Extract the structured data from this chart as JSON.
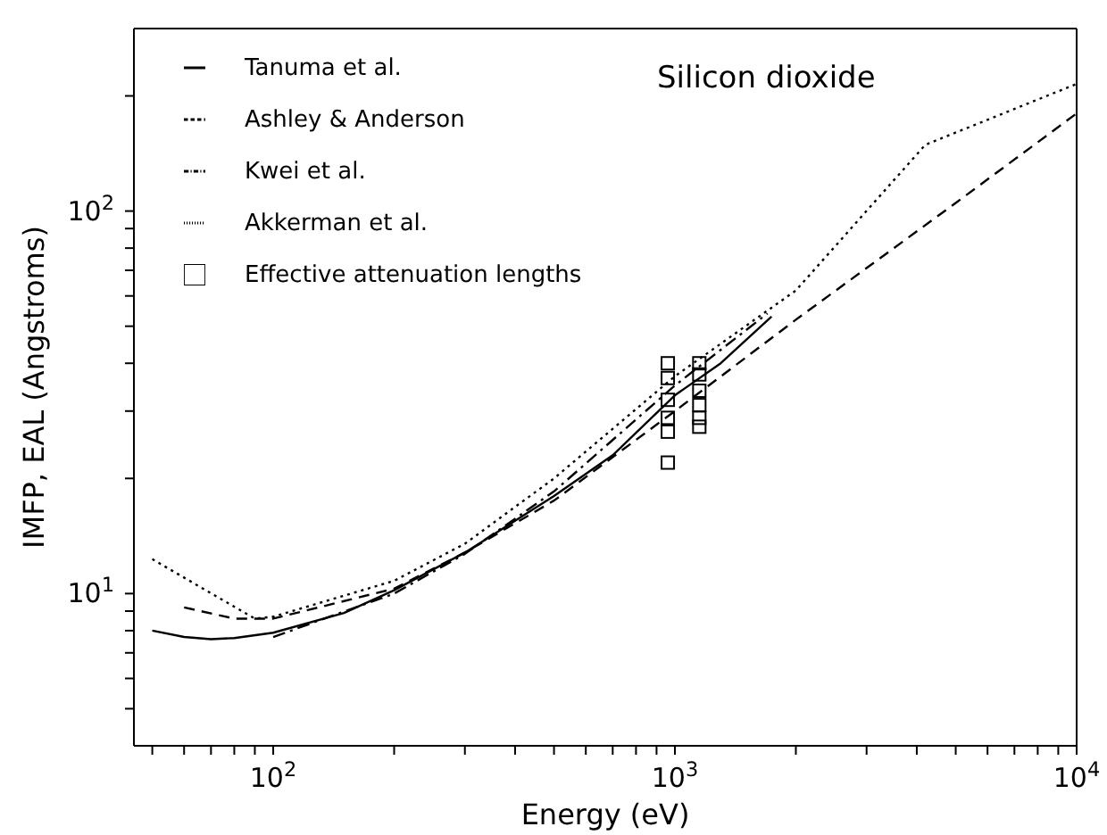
{
  "chart_data": {
    "type": "line",
    "title": "Silicon dioxide",
    "xlabel": "Energy (eV)",
    "ylabel": "IMFP, EAL (Angstroms)",
    "log": "xy",
    "xlim": [
      45,
      10000
    ],
    "ylim": [
      4,
      300
    ],
    "xticks": [
      {
        "value": 50,
        "label": null
      },
      {
        "value": 60,
        "label": null
      },
      {
        "value": 70,
        "label": null
      },
      {
        "value": 80,
        "label": null
      },
      {
        "value": 90,
        "label": null
      },
      {
        "value": 100,
        "label": "10$^{2}$"
      },
      {
        "value": 200,
        "label": null
      },
      {
        "value": 300,
        "label": null
      },
      {
        "value": 400,
        "label": null
      },
      {
        "value": 500,
        "label": null
      },
      {
        "value": 600,
        "label": null
      },
      {
        "value": 700,
        "label": null
      },
      {
        "value": 800,
        "label": null
      },
      {
        "value": 900,
        "label": null
      },
      {
        "value": 1000,
        "label": "10$^{3}$"
      },
      {
        "value": 2000,
        "label": null
      },
      {
        "value": 3000,
        "label": null
      },
      {
        "value": 4000,
        "label": null
      },
      {
        "value": 5000,
        "label": null
      },
      {
        "value": 6000,
        "label": null
      },
      {
        "value": 7000,
        "label": null
      },
      {
        "value": 8000,
        "label": null
      },
      {
        "value": 9000,
        "label": null
      },
      {
        "value": 10000,
        "label": "10$^{4}$"
      }
    ],
    "yticks": [
      {
        "value": 5,
        "label": null
      },
      {
        "value": 6,
        "label": null
      },
      {
        "value": 7,
        "label": null
      },
      {
        "value": 8,
        "label": null
      },
      {
        "value": 9,
        "label": null
      },
      {
        "value": 10,
        "label": "10$^{1}$"
      },
      {
        "value": 20,
        "label": null
      },
      {
        "value": 30,
        "label": null
      },
      {
        "value": 40,
        "label": null
      },
      {
        "value": 50,
        "label": null
      },
      {
        "value": 60,
        "label": null
      },
      {
        "value": 70,
        "label": null
      },
      {
        "value": 80,
        "label": null
      },
      {
        "value": 90,
        "label": null
      },
      {
        "value": 100,
        "label": "10$^{2}$"
      },
      {
        "value": 200,
        "label": null
      }
    ],
    "legend": "top left",
    "grid": false,
    "series": [
      {
        "name": "Tanuma et al.",
        "color": "#000000",
        "line_style": "solid",
        "x": [
          50,
          60,
          70,
          80,
          100,
          150,
          200,
          300,
          500,
          700,
          1000,
          1300,
          1740
        ],
        "values": [
          8.0,
          7.7,
          7.6,
          7.65,
          7.9,
          8.9,
          10.2,
          12.8,
          18,
          23,
          33,
          40,
          53
        ]
      },
      {
        "name": "Ashley & Anderson",
        "color": "#000000",
        "line_style": "dashed",
        "x": [
          60,
          80,
          100,
          200,
          300,
          500,
          1000,
          2000,
          5000,
          10000
        ],
        "values": [
          9.2,
          8.6,
          8.6,
          10.3,
          12.8,
          17.5,
          30,
          52,
          105,
          180
        ]
      },
      {
        "name": "Kwei et al.",
        "color": "#000000",
        "line_style": "dashdot",
        "x": [
          100,
          200,
          300,
          500,
          1000,
          1700
        ],
        "values": [
          7.7,
          10.0,
          12.7,
          18.5,
          35,
          54
        ]
      },
      {
        "name": "Akkerman et al.",
        "color": "#000000",
        "line_style": "dotted",
        "x": [
          50,
          90,
          100,
          200,
          300,
          500,
          1000,
          2000,
          4200,
          10000
        ],
        "values": [
          12.3,
          8.6,
          8.7,
          10.8,
          13.5,
          20,
          37,
          62,
          149,
          215
        ]
      },
      {
        "name": "Effective attenuation lengths",
        "type": "scatter",
        "marker": "square",
        "color": "#000000",
        "x": [
          960,
          960,
          960,
          960,
          960,
          960,
          1150,
          1150,
          1150,
          1150,
          1150,
          1150
        ],
        "values": [
          40,
          36.6,
          32.1,
          28.8,
          26.5,
          22,
          40,
          37.4,
          33.9,
          31.1,
          28.8,
          27.3
        ]
      }
    ]
  }
}
